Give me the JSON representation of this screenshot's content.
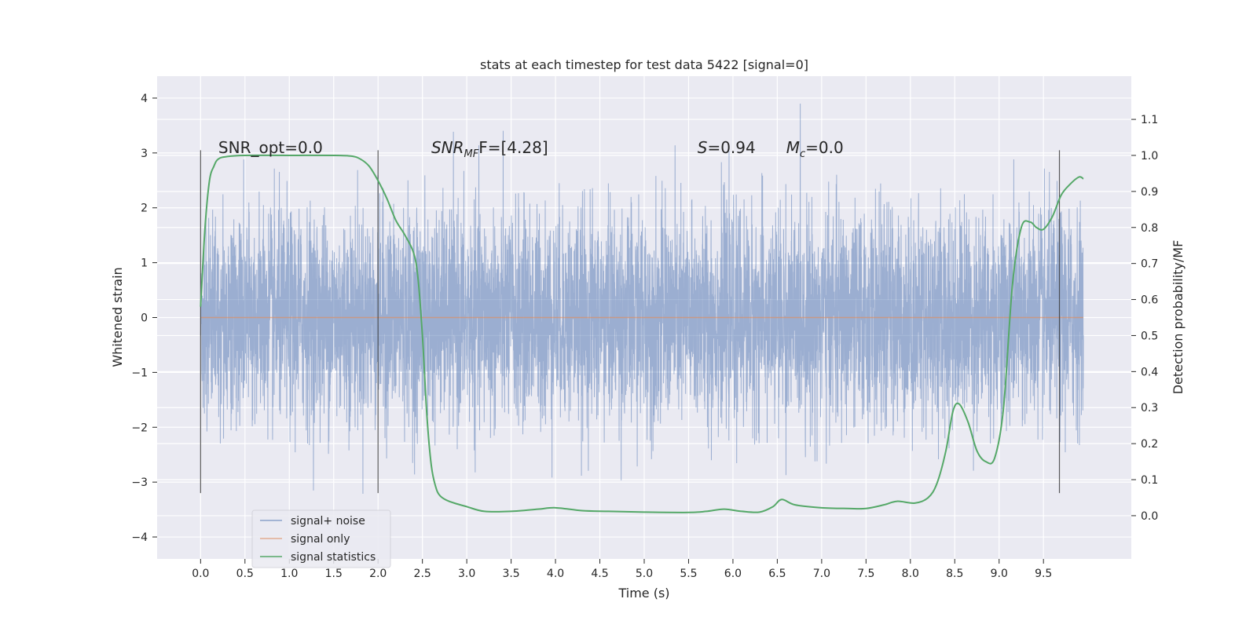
{
  "chart_data": {
    "type": "line",
    "title": "stats at each timestep for test data 5422 [signal=0]",
    "xlabel": "Time (s)",
    "ylabel": "Whitened strain",
    "ylabel_right": "Detection probability/MF",
    "xlim": [
      -0.49,
      10.49
    ],
    "ylim": [
      -4.4,
      4.4
    ],
    "ylim_right": [
      -0.12,
      1.22
    ],
    "x_ticks": [
      "0.0",
      "0.5",
      "1.0",
      "1.5",
      "2.0",
      "2.5",
      "3.0",
      "3.5",
      "4.0",
      "4.5",
      "5.0",
      "5.5",
      "6.0",
      "6.5",
      "7.0",
      "7.5",
      "8.0",
      "8.5",
      "9.0",
      "9.5"
    ],
    "y_ticks": [
      "4",
      "3",
      "2",
      "1",
      "0",
      "−1",
      "−2",
      "−3",
      "−4"
    ],
    "y_ticks_right": [
      "1.1",
      "1.0",
      "0.9",
      "0.8",
      "0.7",
      "0.6",
      "0.5",
      "0.4",
      "0.3",
      "0.2",
      "0.1",
      "0.0"
    ],
    "grid": true,
    "legend_position": "lower-left",
    "annotations": [
      {
        "label": "SNR_opt=0.0",
        "x": 0.2,
        "y": 3.1
      },
      {
        "label_main": "SNR",
        "label_sub": "MF",
        "label_rest": "F=[4.28]",
        "x": 2.6,
        "y": 3.1
      },
      {
        "label_main": "S",
        "label_rest": "=0.94",
        "x": 5.6,
        "y": 3.1
      },
      {
        "label_main": "M",
        "label_sub": "c",
        "label_rest": "=0.0",
        "x": 6.6,
        "y": 3.1
      }
    ],
    "vertical_lines": [
      0.0,
      2.0,
      9.68
    ],
    "vertical_line_range": [
      -3.2,
      3.05
    ],
    "series": [
      {
        "name": "signal+ noise",
        "color": "#4c72b0",
        "x_range": [
          0.0,
          9.95
        ],
        "sigma": 0.95,
        "max_abs": 3.9
      },
      {
        "name": "signal only",
        "color": "#dd8452",
        "x_range": [
          0.0,
          9.95
        ],
        "values": [
          0.0,
          0.0
        ]
      },
      {
        "name": "signal statistics",
        "color": "#55a868",
        "axis": "right",
        "x": [
          0.0,
          0.05,
          0.1,
          0.15,
          0.2,
          0.3,
          0.5,
          1.0,
          1.5,
          1.7,
          1.8,
          1.9,
          2.0,
          2.1,
          2.2,
          2.3,
          2.4,
          2.45,
          2.5,
          2.55,
          2.6,
          2.65,
          2.7,
          2.8,
          3.0,
          3.2,
          3.5,
          3.8,
          4.0,
          4.3,
          4.6,
          5.0,
          5.5,
          5.7,
          5.9,
          6.1,
          6.3,
          6.45,
          6.55,
          6.7,
          7.0,
          7.3,
          7.5,
          7.7,
          7.85,
          8.05,
          8.2,
          8.3,
          8.4,
          8.48,
          8.55,
          8.65,
          8.75,
          8.85,
          8.95,
          9.05,
          9.15,
          9.25,
          9.35,
          9.42,
          9.5,
          9.6,
          9.7,
          9.8,
          9.9,
          9.95
        ],
        "values": [
          0.58,
          0.8,
          0.93,
          0.97,
          0.99,
          0.997,
          1.0,
          1.0,
          1.0,
          0.998,
          0.99,
          0.97,
          0.93,
          0.88,
          0.82,
          0.78,
          0.73,
          0.66,
          0.5,
          0.28,
          0.14,
          0.08,
          0.055,
          0.04,
          0.025,
          0.012,
          0.012,
          0.018,
          0.022,
          0.014,
          0.012,
          0.01,
          0.009,
          0.012,
          0.018,
          0.012,
          0.01,
          0.025,
          0.045,
          0.03,
          0.022,
          0.02,
          0.02,
          0.03,
          0.04,
          0.035,
          0.05,
          0.09,
          0.18,
          0.29,
          0.31,
          0.26,
          0.18,
          0.15,
          0.16,
          0.3,
          0.64,
          0.8,
          0.815,
          0.8,
          0.795,
          0.83,
          0.89,
          0.92,
          0.94,
          0.935
        ]
      }
    ]
  }
}
